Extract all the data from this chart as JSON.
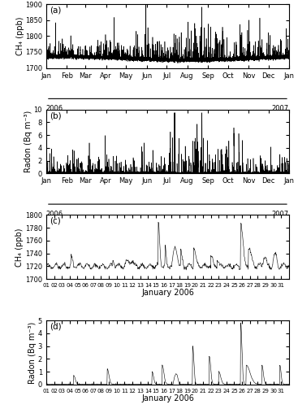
{
  "panel_a": {
    "label": "(a)",
    "ylabel": "CH₄ (ppb)",
    "ylim": [
      1700,
      1900
    ],
    "yticks": [
      1700,
      1750,
      1800,
      1850,
      1900
    ]
  },
  "panel_b": {
    "label": "(b)",
    "ylabel": "Radon (Bq m⁻³)",
    "ylim": [
      0,
      10
    ],
    "yticks": [
      0,
      2,
      4,
      6,
      8,
      10
    ]
  },
  "panel_c": {
    "label": "(c)",
    "ylabel": "CH₄ (ppb)",
    "ylim": [
      1700,
      1800
    ],
    "yticks": [
      1700,
      1720,
      1740,
      1760,
      1780,
      1800
    ],
    "xlabel": "January 2006"
  },
  "panel_d": {
    "label": "(d)",
    "ylabel": "Radon (Bq m⁻³)",
    "ylim": [
      0,
      5
    ],
    "yticks": [
      0,
      1,
      2,
      3,
      4,
      5
    ],
    "xlabel": "January 2006"
  },
  "month_labels": [
    "Jan",
    "Feb",
    "Mar",
    "Apr",
    "May",
    "Jun",
    "Jul",
    "Aug",
    "Sep",
    "Oct",
    "Nov",
    "Dec",
    "Jan"
  ],
  "day_labels": [
    "01",
    "02",
    "03",
    "04",
    "05",
    "06",
    "07",
    "08",
    "09",
    "10",
    "11",
    "12",
    "13",
    "14",
    "15",
    "16",
    "17",
    "18",
    "19",
    "20",
    "21",
    "22",
    "23",
    "24",
    "25",
    "26",
    "27",
    "28",
    "29",
    "30",
    "31"
  ],
  "line_color": "black",
  "background_color": "white",
  "tick_labelsize": 6.0,
  "axis_labelsize": 7.0
}
